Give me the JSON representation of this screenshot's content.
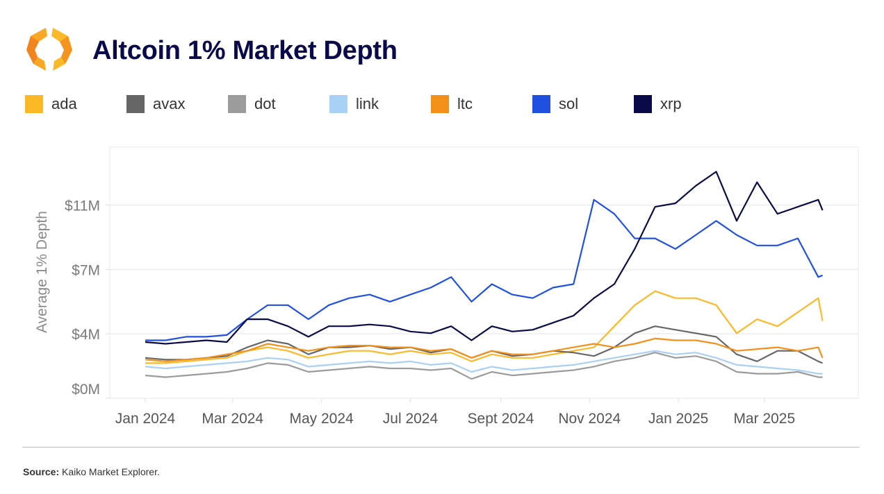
{
  "header": {
    "title": "Altcoin 1% Market Depth"
  },
  "footer": {
    "source_label": "Source:",
    "source_text": " Kaiko Market Explorer."
  },
  "chart_data": {
    "type": "line",
    "title": "Altcoin 1% Market Depth",
    "xlabel": "",
    "ylabel": "Average 1% Depth",
    "ylim": [
      0,
      14.3
    ],
    "y_ticks": [
      {
        "value": 0,
        "label": "$0M"
      },
      {
        "value": 3.667,
        "label": "$4M"
      },
      {
        "value": 7.333,
        "label": "$7M"
      },
      {
        "value": 11,
        "label": "$11M"
      }
    ],
    "x_ticks": [
      {
        "date": "2024-01-01",
        "label": "Jan 2024"
      },
      {
        "date": "2024-03-01",
        "label": "Mar 2024"
      },
      {
        "date": "2024-05-01",
        "label": "May 2024"
      },
      {
        "date": "2024-07-01",
        "label": "Jul 2024"
      },
      {
        "date": "2024-09-01",
        "label": "Sept 2024"
      },
      {
        "date": "2024-11-01",
        "label": "Nov 2024"
      },
      {
        "date": "2025-01-01",
        "label": "Jan 2025"
      },
      {
        "date": "2025-03-01",
        "label": "Mar 2025"
      }
    ],
    "x_range": [
      "2023-12-10",
      "2025-05-05"
    ],
    "grid": true,
    "legend_position": "top-left",
    "dates": [
      "2024-01-01",
      "2024-01-15",
      "2024-01-29",
      "2024-02-12",
      "2024-02-26",
      "2024-03-11",
      "2024-03-25",
      "2024-04-08",
      "2024-04-22",
      "2024-05-06",
      "2024-05-20",
      "2024-06-03",
      "2024-06-17",
      "2024-07-01",
      "2024-07-15",
      "2024-07-29",
      "2024-08-12",
      "2024-08-26",
      "2024-09-09",
      "2024-09-23",
      "2024-10-07",
      "2024-10-21",
      "2024-11-04",
      "2024-11-18",
      "2024-12-02",
      "2024-12-16",
      "2024-12-30",
      "2025-01-13",
      "2025-01-27",
      "2025-02-10",
      "2025-02-24",
      "2025-03-10",
      "2025-03-24",
      "2025-04-07",
      "2025-04-10"
    ],
    "series": [
      {
        "name": "ada",
        "color": "#FDB827",
        "values": [
          2.0,
          2.0,
          2.1,
          2.2,
          2.3,
          2.7,
          2.9,
          2.7,
          2.3,
          2.5,
          2.7,
          2.7,
          2.5,
          2.7,
          2.5,
          2.6,
          2.1,
          2.5,
          2.3,
          2.3,
          2.5,
          2.7,
          2.9,
          4.1,
          5.3,
          6.1,
          5.7,
          5.7,
          5.3,
          3.7,
          4.5,
          4.1,
          4.9,
          5.7,
          4.4
        ]
      },
      {
        "name": "avax",
        "color": "#666666",
        "values": [
          2.3,
          2.2,
          2.2,
          2.3,
          2.4,
          2.9,
          3.3,
          3.1,
          2.5,
          2.9,
          2.9,
          3.0,
          2.8,
          2.9,
          2.6,
          2.8,
          2.3,
          2.7,
          2.4,
          2.5,
          2.7,
          2.6,
          2.4,
          2.9,
          3.7,
          4.1,
          3.9,
          3.7,
          3.5,
          2.5,
          2.1,
          2.7,
          2.7,
          2.1,
          2.0
        ]
      },
      {
        "name": "dot",
        "color": "#9B9B9B",
        "values": [
          1.3,
          1.2,
          1.3,
          1.4,
          1.5,
          1.7,
          2.0,
          1.9,
          1.5,
          1.6,
          1.7,
          1.8,
          1.7,
          1.7,
          1.6,
          1.7,
          1.1,
          1.5,
          1.3,
          1.4,
          1.5,
          1.6,
          1.8,
          2.1,
          2.3,
          2.6,
          2.3,
          2.4,
          2.1,
          1.5,
          1.4,
          1.4,
          1.5,
          1.2,
          1.2
        ]
      },
      {
        "name": "link",
        "color": "#A9D0F5",
        "values": [
          1.8,
          1.7,
          1.8,
          1.9,
          2.0,
          2.1,
          2.3,
          2.2,
          1.8,
          1.9,
          2.0,
          2.1,
          2.0,
          2.1,
          1.9,
          2.0,
          1.5,
          1.8,
          1.6,
          1.7,
          1.8,
          1.9,
          2.1,
          2.3,
          2.5,
          2.7,
          2.5,
          2.6,
          2.3,
          1.9,
          1.8,
          1.7,
          1.6,
          1.4,
          1.4
        ]
      },
      {
        "name": "ltc",
        "color": "#F29019",
        "values": [
          2.2,
          2.1,
          2.2,
          2.3,
          2.5,
          2.7,
          3.1,
          2.9,
          2.7,
          2.9,
          3.0,
          3.0,
          2.9,
          2.9,
          2.7,
          2.8,
          2.3,
          2.7,
          2.5,
          2.5,
          2.7,
          2.9,
          3.1,
          2.9,
          3.1,
          3.4,
          3.3,
          3.3,
          3.1,
          2.7,
          2.8,
          2.9,
          2.7,
          2.9,
          2.3
        ]
      },
      {
        "name": "sol",
        "color": "#1F50E0",
        "values": [
          3.3,
          3.3,
          3.5,
          3.5,
          3.6,
          4.5,
          5.3,
          5.3,
          4.5,
          5.3,
          5.7,
          5.9,
          5.5,
          5.9,
          6.3,
          6.9,
          5.5,
          6.5,
          5.9,
          5.7,
          6.3,
          6.5,
          11.3,
          10.5,
          9.1,
          9.1,
          8.5,
          9.3,
          10.1,
          9.3,
          8.7,
          8.7,
          9.1,
          6.9,
          7.0
        ]
      },
      {
        "name": "xrp",
        "color": "#0A0A48",
        "values": [
          3.2,
          3.1,
          3.2,
          3.3,
          3.2,
          4.5,
          4.5,
          4.1,
          3.5,
          4.1,
          4.1,
          4.2,
          4.1,
          3.8,
          3.7,
          4.1,
          3.3,
          4.1,
          3.8,
          3.9,
          4.3,
          4.7,
          5.7,
          6.5,
          8.5,
          10.9,
          11.1,
          12.1,
          12.9,
          10.1,
          12.3,
          10.5,
          10.9,
          11.3,
          10.7
        ]
      }
    ]
  }
}
